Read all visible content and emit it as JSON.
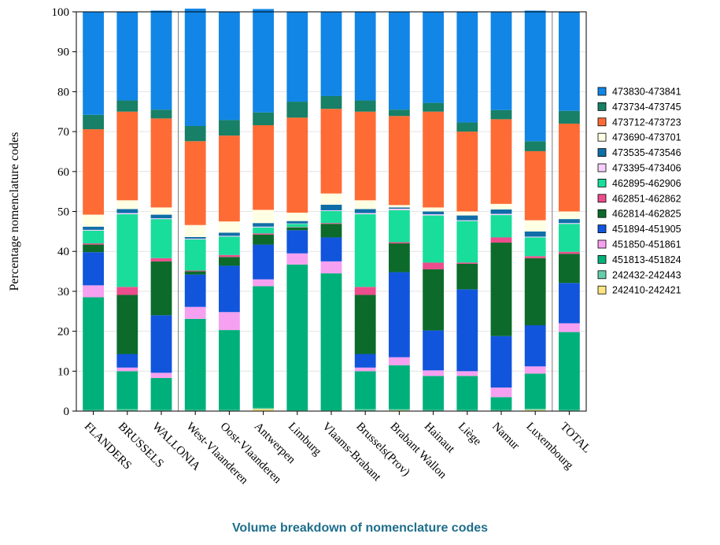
{
  "footer": {
    "title": "Volume breakdown of nomenclature codes"
  },
  "chart_data": {
    "type": "bar",
    "stacked": true,
    "ylabel": "Percentage nomenclature codes",
    "xlabel": "",
    "ylim": [
      0,
      100
    ],
    "yticks": [
      0,
      10,
      20,
      30,
      40,
      50,
      60,
      70,
      80,
      90,
      100
    ],
    "grid": true,
    "legend_position": "right",
    "categories": [
      "FLANDERS",
      "BRUSSELS",
      "WALLONIA",
      "West-Vlaanderen",
      "Oost-Vlaanderen",
      "Antwerpen",
      "Limburg",
      "Vlaams-Brabant",
      "Brussels(Prov)",
      "Brabant Wallon",
      "Hainaut",
      "Liège",
      "Namur",
      "Luxembourg",
      "TOTAL"
    ],
    "group_separators_after": [
      "WALLONIA",
      "Luxembourg"
    ],
    "series": [
      {
        "name": "242410-242421",
        "color": "#ffe680",
        "values": [
          0.0,
          0.0,
          0.0,
          0.0,
          0.0,
          0.5,
          0.0,
          0.0,
          0.0,
          0.2,
          0.0,
          0.0,
          0.0,
          0.3,
          0.0
        ]
      },
      {
        "name": "242432-242443",
        "color": "#66cdaa",
        "values": [
          0.3,
          0.5,
          0.3,
          0.3,
          0.3,
          0.3,
          0.2,
          0.2,
          0.5,
          0.3,
          0.3,
          0.3,
          0.3,
          0.3,
          0.3
        ]
      },
      {
        "name": "451813-451824",
        "color": "#00b07a",
        "values": [
          28.2,
          9.5,
          8.0,
          22.8,
          20.0,
          30.5,
          36.5,
          34.3,
          9.5,
          11.0,
          8.5,
          8.5,
          3.2,
          8.8,
          19.5
        ]
      },
      {
        "name": "451850-451861",
        "color": "#f5a0f0",
        "values": [
          3.0,
          0.9,
          1.3,
          3.0,
          4.5,
          1.7,
          2.8,
          3.0,
          0.9,
          2.0,
          1.4,
          1.2,
          2.4,
          1.8,
          2.2
        ]
      },
      {
        "name": "451894-451905",
        "color": "#1155dd",
        "values": [
          8.3,
          3.4,
          14.4,
          8.1,
          11.6,
          8.7,
          5.8,
          6.0,
          3.4,
          21.3,
          10.0,
          20.5,
          12.9,
          10.3,
          10.1
        ]
      },
      {
        "name": "462814-462825",
        "color": "#0c6b2a",
        "values": [
          1.9,
          14.8,
          13.5,
          0.8,
          2.2,
          2.5,
          0.7,
          3.4,
          14.8,
          7.2,
          15.3,
          6.4,
          23.4,
          16.8,
          7.3
        ]
      },
      {
        "name": "462851-462862",
        "color": "#ec4d8c",
        "values": [
          0.3,
          2.0,
          0.8,
          0.2,
          0.5,
          0.3,
          0.1,
          0.2,
          2.0,
          0.3,
          1.7,
          0.3,
          1.3,
          0.5,
          0.5
        ]
      },
      {
        "name": "462895-462906",
        "color": "#19dd9a",
        "values": [
          3.2,
          18.2,
          9.8,
          7.8,
          4.6,
          1.5,
          0.8,
          3.0,
          18.2,
          8.0,
          11.8,
          10.4,
          5.6,
          4.7,
          7.0
        ]
      },
      {
        "name": "473395-473406",
        "color": "#f7d0ff",
        "values": [
          0.2,
          0.3,
          0.2,
          0.2,
          0.2,
          0.2,
          0.1,
          0.2,
          0.3,
          0.4,
          0.3,
          0.2,
          0.3,
          0.2,
          0.2
        ]
      },
      {
        "name": "473535-473546",
        "color": "#0f6ea8",
        "values": [
          0.8,
          1.0,
          0.9,
          0.4,
          0.8,
          0.9,
          0.6,
          1.4,
          1.0,
          0.3,
          0.7,
          1.2,
          1.1,
          1.3,
          1.0
        ]
      },
      {
        "name": "473690-473701",
        "color": "#ffffe3",
        "values": [
          3.0,
          2.2,
          1.8,
          3.0,
          2.8,
          3.3,
          2.1,
          2.8,
          2.2,
          0.6,
          1.0,
          1.0,
          1.4,
          2.8,
          1.9
        ]
      },
      {
        "name": "473712-473723",
        "color": "#ff6b35",
        "values": [
          21.4,
          22.2,
          22.3,
          21.0,
          21.5,
          21.2,
          23.8,
          21.2,
          22.2,
          22.3,
          24.0,
          20.0,
          21.2,
          17.3,
          22.0
        ]
      },
      {
        "name": "473734-473745",
        "color": "#178066",
        "values": [
          3.6,
          2.8,
          2.2,
          3.8,
          3.9,
          3.2,
          4.0,
          3.2,
          2.8,
          1.6,
          2.2,
          2.3,
          2.3,
          2.5,
          3.2
        ]
      },
      {
        "name": "473830-473841",
        "color": "#1186e6",
        "values": [
          25.8,
          22.2,
          24.8,
          29.4,
          27.1,
          25.9,
          22.5,
          21.1,
          22.2,
          24.5,
          22.8,
          27.7,
          24.6,
          32.7,
          24.8
        ]
      }
    ]
  }
}
